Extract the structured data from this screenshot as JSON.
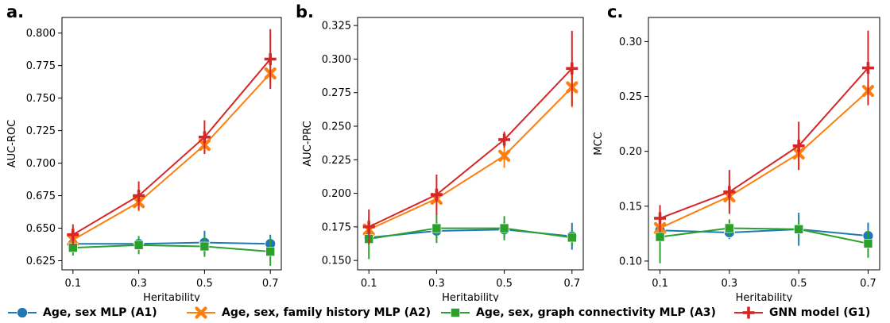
{
  "chart_data": [
    {
      "type": "line",
      "panel_label": "a.",
      "xlabel": "Heritability",
      "ylabel": "AUC-ROC",
      "x": [
        0.1,
        0.3,
        0.5,
        0.7
      ],
      "x_ticks": [
        "0.1",
        "0.3",
        "0.5",
        "0.7"
      ],
      "ylim": [
        0.618,
        0.812
      ],
      "y_ticks": [
        "0.625",
        "0.650",
        "0.675",
        "0.700",
        "0.725",
        "0.750",
        "0.775",
        "0.800"
      ],
      "series": [
        {
          "key": "A1",
          "values": [
            0.638,
            0.638,
            0.639,
            0.638
          ],
          "err": [
            0.003,
            0.003,
            0.009,
            0.007
          ]
        },
        {
          "key": "A2",
          "values": [
            0.641,
            0.67,
            0.714,
            0.769
          ],
          "err": [
            0.004,
            0.007,
            0.006,
            0.007
          ]
        },
        {
          "key": "A3",
          "values": [
            0.635,
            0.637,
            0.636,
            0.632
          ],
          "err": [
            0.006,
            0.007,
            0.008,
            0.011
          ]
        },
        {
          "key": "G1",
          "values": [
            0.645,
            0.675,
            0.72,
            0.78
          ],
          "err": [
            0.008,
            0.011,
            0.013,
            0.023
          ]
        }
      ]
    },
    {
      "type": "line",
      "panel_label": "b.",
      "xlabel": "Heritability",
      "ylabel": "AUC-PRC",
      "x": [
        0.1,
        0.3,
        0.5,
        0.7
      ],
      "x_ticks": [
        "0.1",
        "0.3",
        "0.5",
        "0.7"
      ],
      "ylim": [
        0.143,
        0.331
      ],
      "y_ticks": [
        "0.150",
        "0.175",
        "0.200",
        "0.225",
        "0.250",
        "0.275",
        "0.300",
        "0.325"
      ],
      "series": [
        {
          "key": "A1",
          "values": [
            0.167,
            0.172,
            0.173,
            0.168
          ],
          "err": [
            0.004,
            0.006,
            0.006,
            0.01
          ]
        },
        {
          "key": "A2",
          "values": [
            0.173,
            0.196,
            0.228,
            0.279
          ],
          "err": [
            0.006,
            0.008,
            0.009,
            0.015
          ]
        },
        {
          "key": "A3",
          "values": [
            0.166,
            0.174,
            0.174,
            0.167
          ],
          "err": [
            0.015,
            0.011,
            0.009,
            0.006
          ]
        },
        {
          "key": "G1",
          "values": [
            0.175,
            0.199,
            0.24,
            0.293
          ],
          "err": [
            0.013,
            0.015,
            0.006,
            0.028
          ]
        }
      ]
    },
    {
      "type": "line",
      "panel_label": "c.",
      "xlabel": "Heritability",
      "ylabel": "MCC",
      "x": [
        0.1,
        0.3,
        0.5,
        0.7
      ],
      "x_ticks": [
        "0.1",
        "0.3",
        "0.5",
        "0.7"
      ],
      "ylim": [
        0.092,
        0.322
      ],
      "y_ticks": [
        "0.10",
        "0.15",
        "0.20",
        "0.25",
        "0.30"
      ],
      "series": [
        {
          "key": "A1",
          "values": [
            0.128,
            0.126,
            0.129,
            0.123
          ],
          "err": [
            0.004,
            0.006,
            0.015,
            0.012
          ]
        },
        {
          "key": "A2",
          "values": [
            0.13,
            0.159,
            0.198,
            0.255
          ],
          "err": [
            0.005,
            0.01,
            0.015,
            0.009
          ]
        },
        {
          "key": "A3",
          "values": [
            0.122,
            0.13,
            0.129,
            0.116
          ],
          "err": [
            0.024,
            0.008,
            0.008,
            0.013
          ]
        },
        {
          "key": "G1",
          "values": [
            0.139,
            0.163,
            0.205,
            0.276
          ],
          "err": [
            0.012,
            0.02,
            0.022,
            0.034
          ]
        }
      ]
    }
  ],
  "legend": [
    {
      "key": "A1",
      "label": "Age, sex MLP (A1)",
      "color": "#1f77b4",
      "marker": "circle"
    },
    {
      "key": "A2",
      "label": "Age, sex, family history MLP (A2)",
      "color": "#ff7f0e",
      "marker": "x"
    },
    {
      "key": "A3",
      "label": "Age, sex, graph connectivity MLP (A3)",
      "color": "#2ca02c",
      "marker": "square"
    },
    {
      "key": "G1",
      "label": "GNN model (G1)",
      "color": "#d62728",
      "marker": "plus"
    }
  ],
  "legend_placement": "bottom",
  "grid": false
}
